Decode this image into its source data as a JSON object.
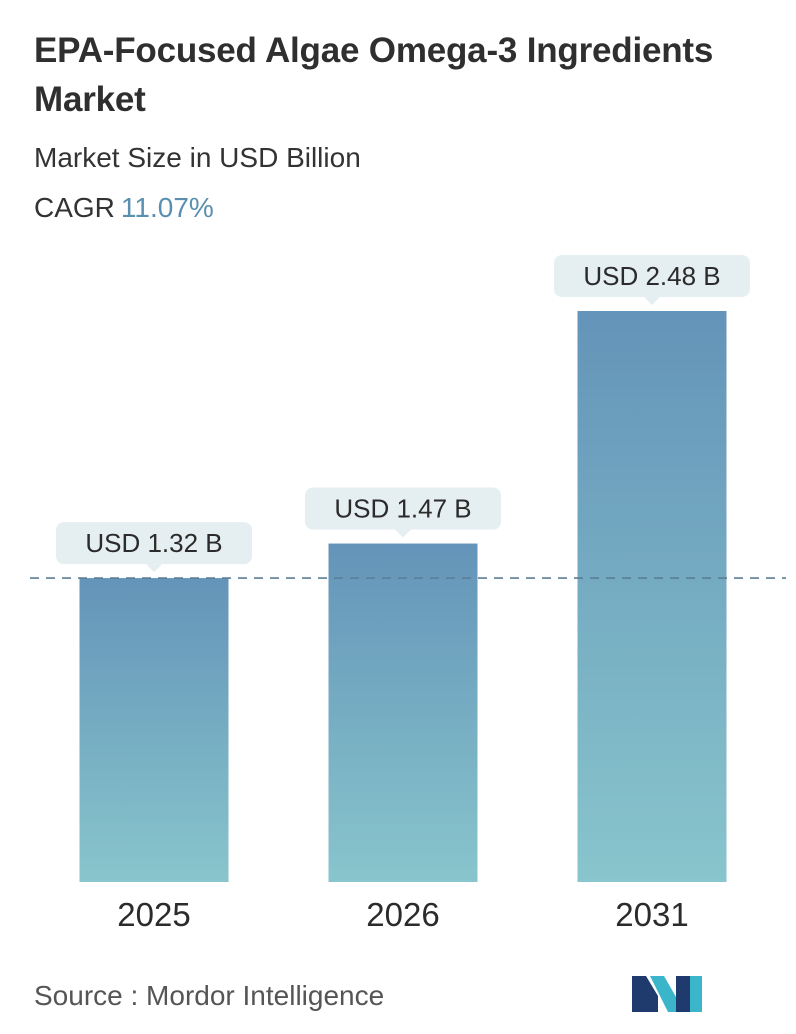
{
  "header": {
    "title": "EPA-Focused Algae Omega-3 Ingredients Market",
    "subtitle": "Market Size in USD Billion",
    "cagr_label": "CAGR",
    "cagr_value": "11.07%"
  },
  "chart_data": {
    "type": "bar",
    "categories": [
      "2025",
      "2026",
      "2031"
    ],
    "values": [
      1.32,
      1.47,
      2.48
    ],
    "value_labels": [
      "USD 1.32 B",
      "USD 1.47 B",
      "USD 2.48 B"
    ],
    "unit": "USD Billion",
    "reference_line": "dashed line at 2025 value",
    "ylim": [
      0,
      2.48
    ],
    "colors": {
      "bar_top": "#6494b9",
      "bar_bottom": "#88c5cc",
      "label_bg": "#e5eef0",
      "reference_line": "#5b7f96"
    }
  },
  "footer": {
    "source": "Source :  Mordor Intelligence"
  },
  "logo": {
    "icon": "mordor-intelligence-logo",
    "colors": [
      "#1f3b6e",
      "#3bb5c9"
    ]
  }
}
